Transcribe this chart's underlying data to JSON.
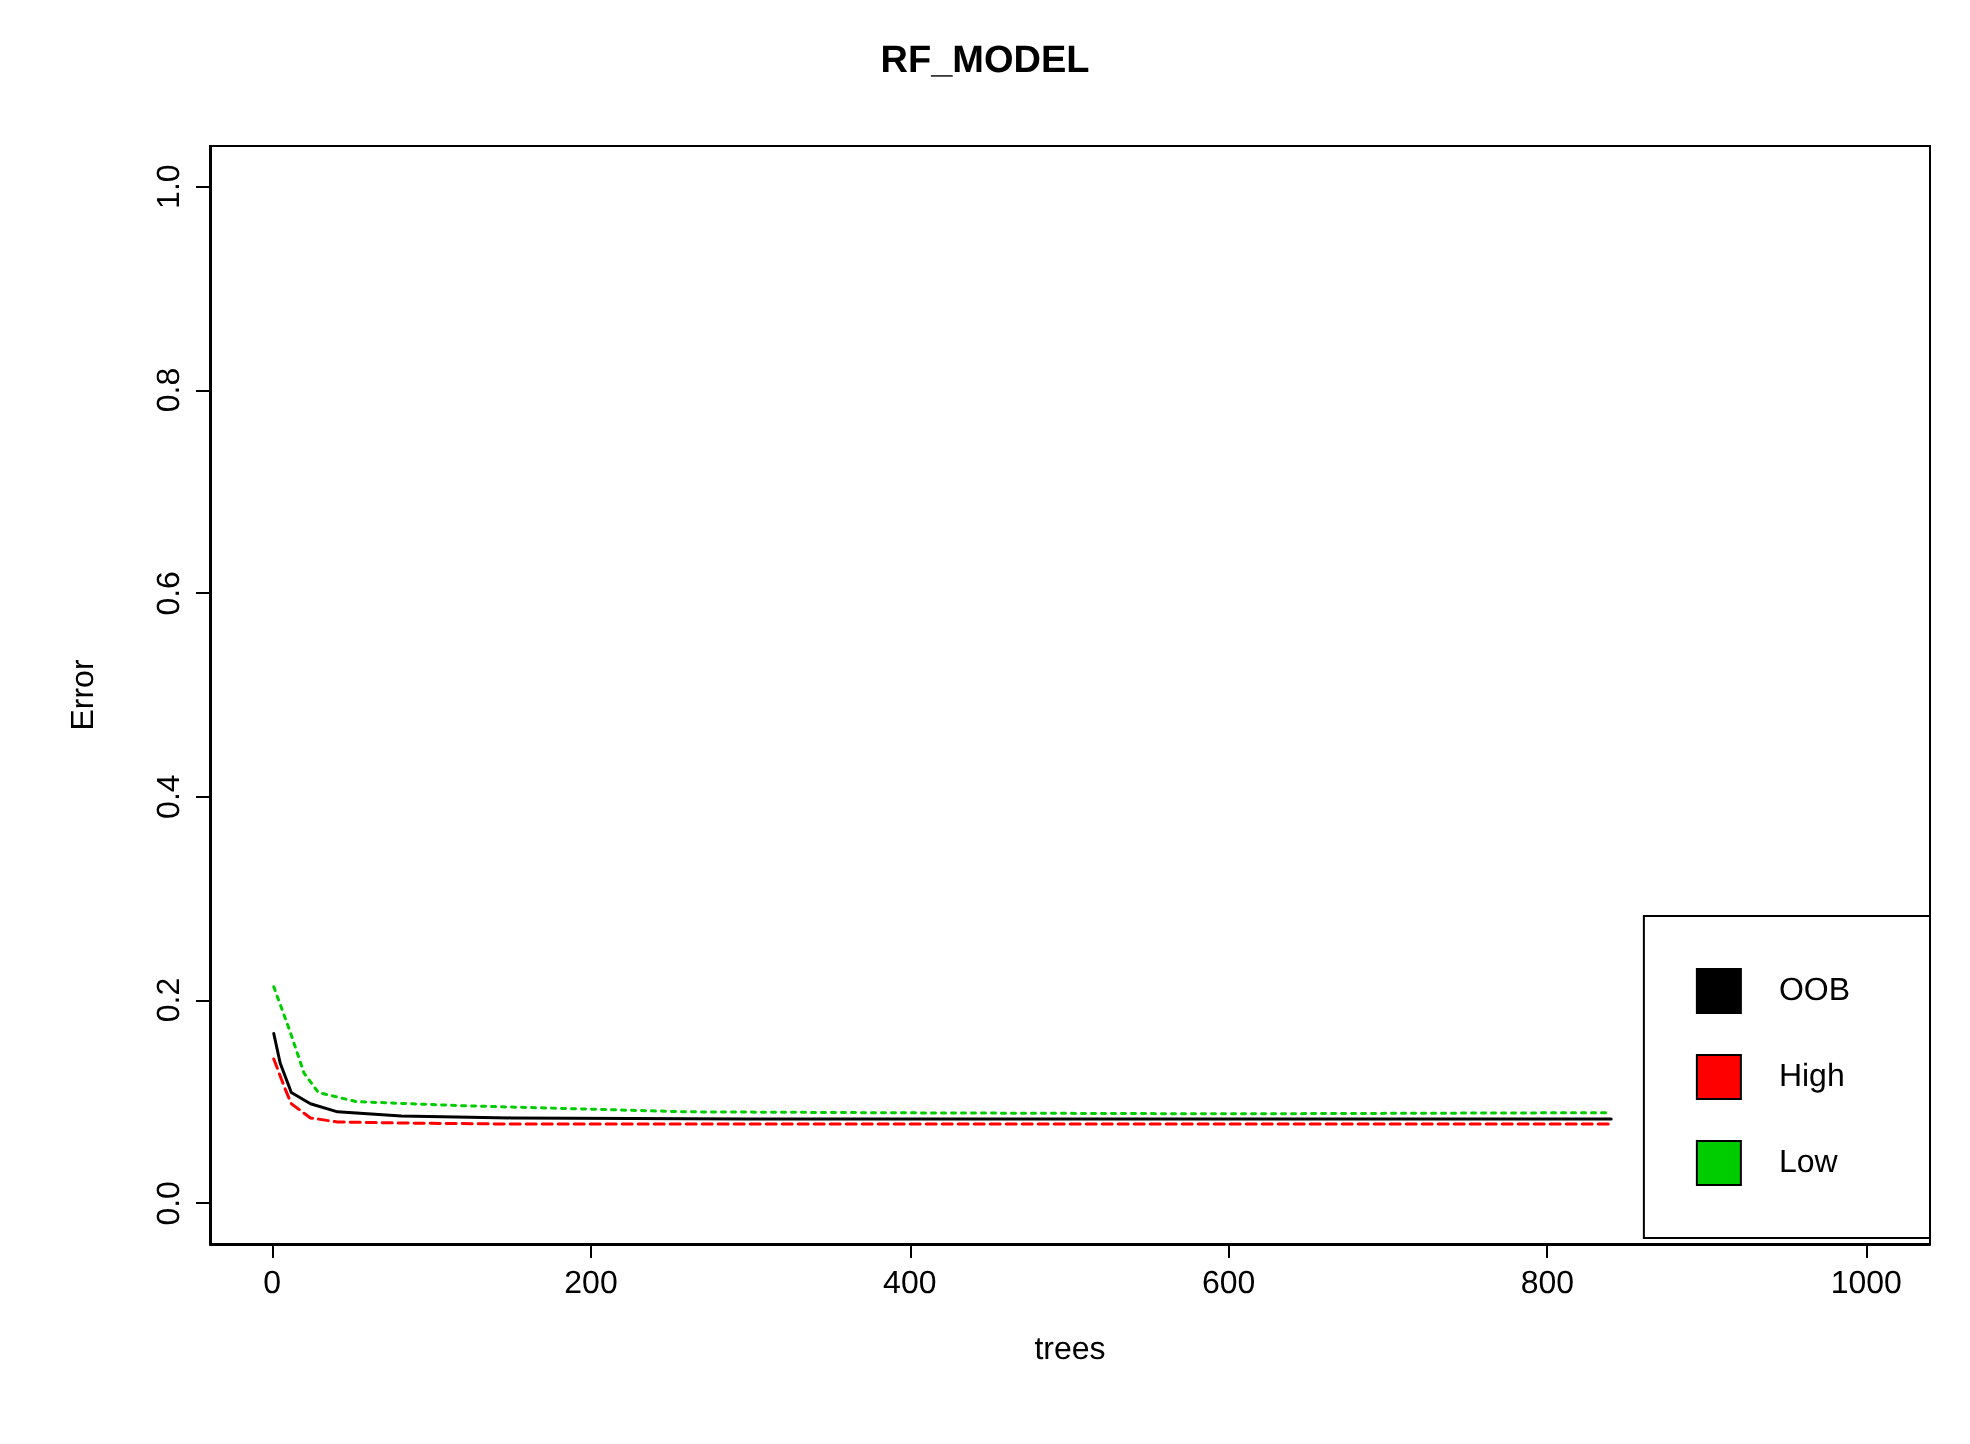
{
  "chart_data": {
    "type": "line",
    "title": "RF_MODEL",
    "xlabel": "trees",
    "ylabel": "Error",
    "xlim": [
      -39,
      1040
    ],
    "ylim": [
      -0.04,
      1.04
    ],
    "xticks": [
      0,
      200,
      400,
      600,
      800,
      1000
    ],
    "yticks": [
      {
        "value": 0,
        "label": "0.0"
      },
      {
        "value": 0.2,
        "label": "0.2"
      },
      {
        "value": 0.4,
        "label": "0.4"
      },
      {
        "value": 0.6,
        "label": "0.6"
      },
      {
        "value": 0.8,
        "label": "0.8"
      },
      {
        "value": 1,
        "label": "1.0"
      }
    ],
    "grid": false,
    "legend": "bottom right",
    "marker": "none",
    "series": [
      {
        "name": "OOB",
        "color": "#000000",
        "line_style": "solid",
        "x": [
          1,
          5,
          12,
          24,
          41,
          81,
          150,
          300,
          500,
          700,
          840
        ],
        "values": [
          0.167,
          0.138,
          0.109,
          0.098,
          0.09,
          0.086,
          0.084,
          0.083,
          0.083,
          0.083,
          0.083
        ]
      },
      {
        "name": "High",
        "color": "#ff0000",
        "line_style": "dashed",
        "x": [
          1,
          8,
          12,
          24,
          41,
          81,
          150,
          300,
          500,
          700,
          840
        ],
        "values": [
          0.142,
          0.113,
          0.098,
          0.084,
          0.08,
          0.079,
          0.078,
          0.078,
          0.078,
          0.078,
          0.078
        ]
      },
      {
        "name": "Low",
        "color": "#00cd00",
        "line_style": "dotted",
        "x": [
          1,
          11,
          20,
          29,
          53,
          120,
          261,
          400,
          600,
          800,
          840
        ],
        "values": [
          0.213,
          0.17,
          0.128,
          0.109,
          0.1,
          0.096,
          0.09,
          0.089,
          0.088,
          0.089,
          0.089
        ]
      }
    ]
  }
}
